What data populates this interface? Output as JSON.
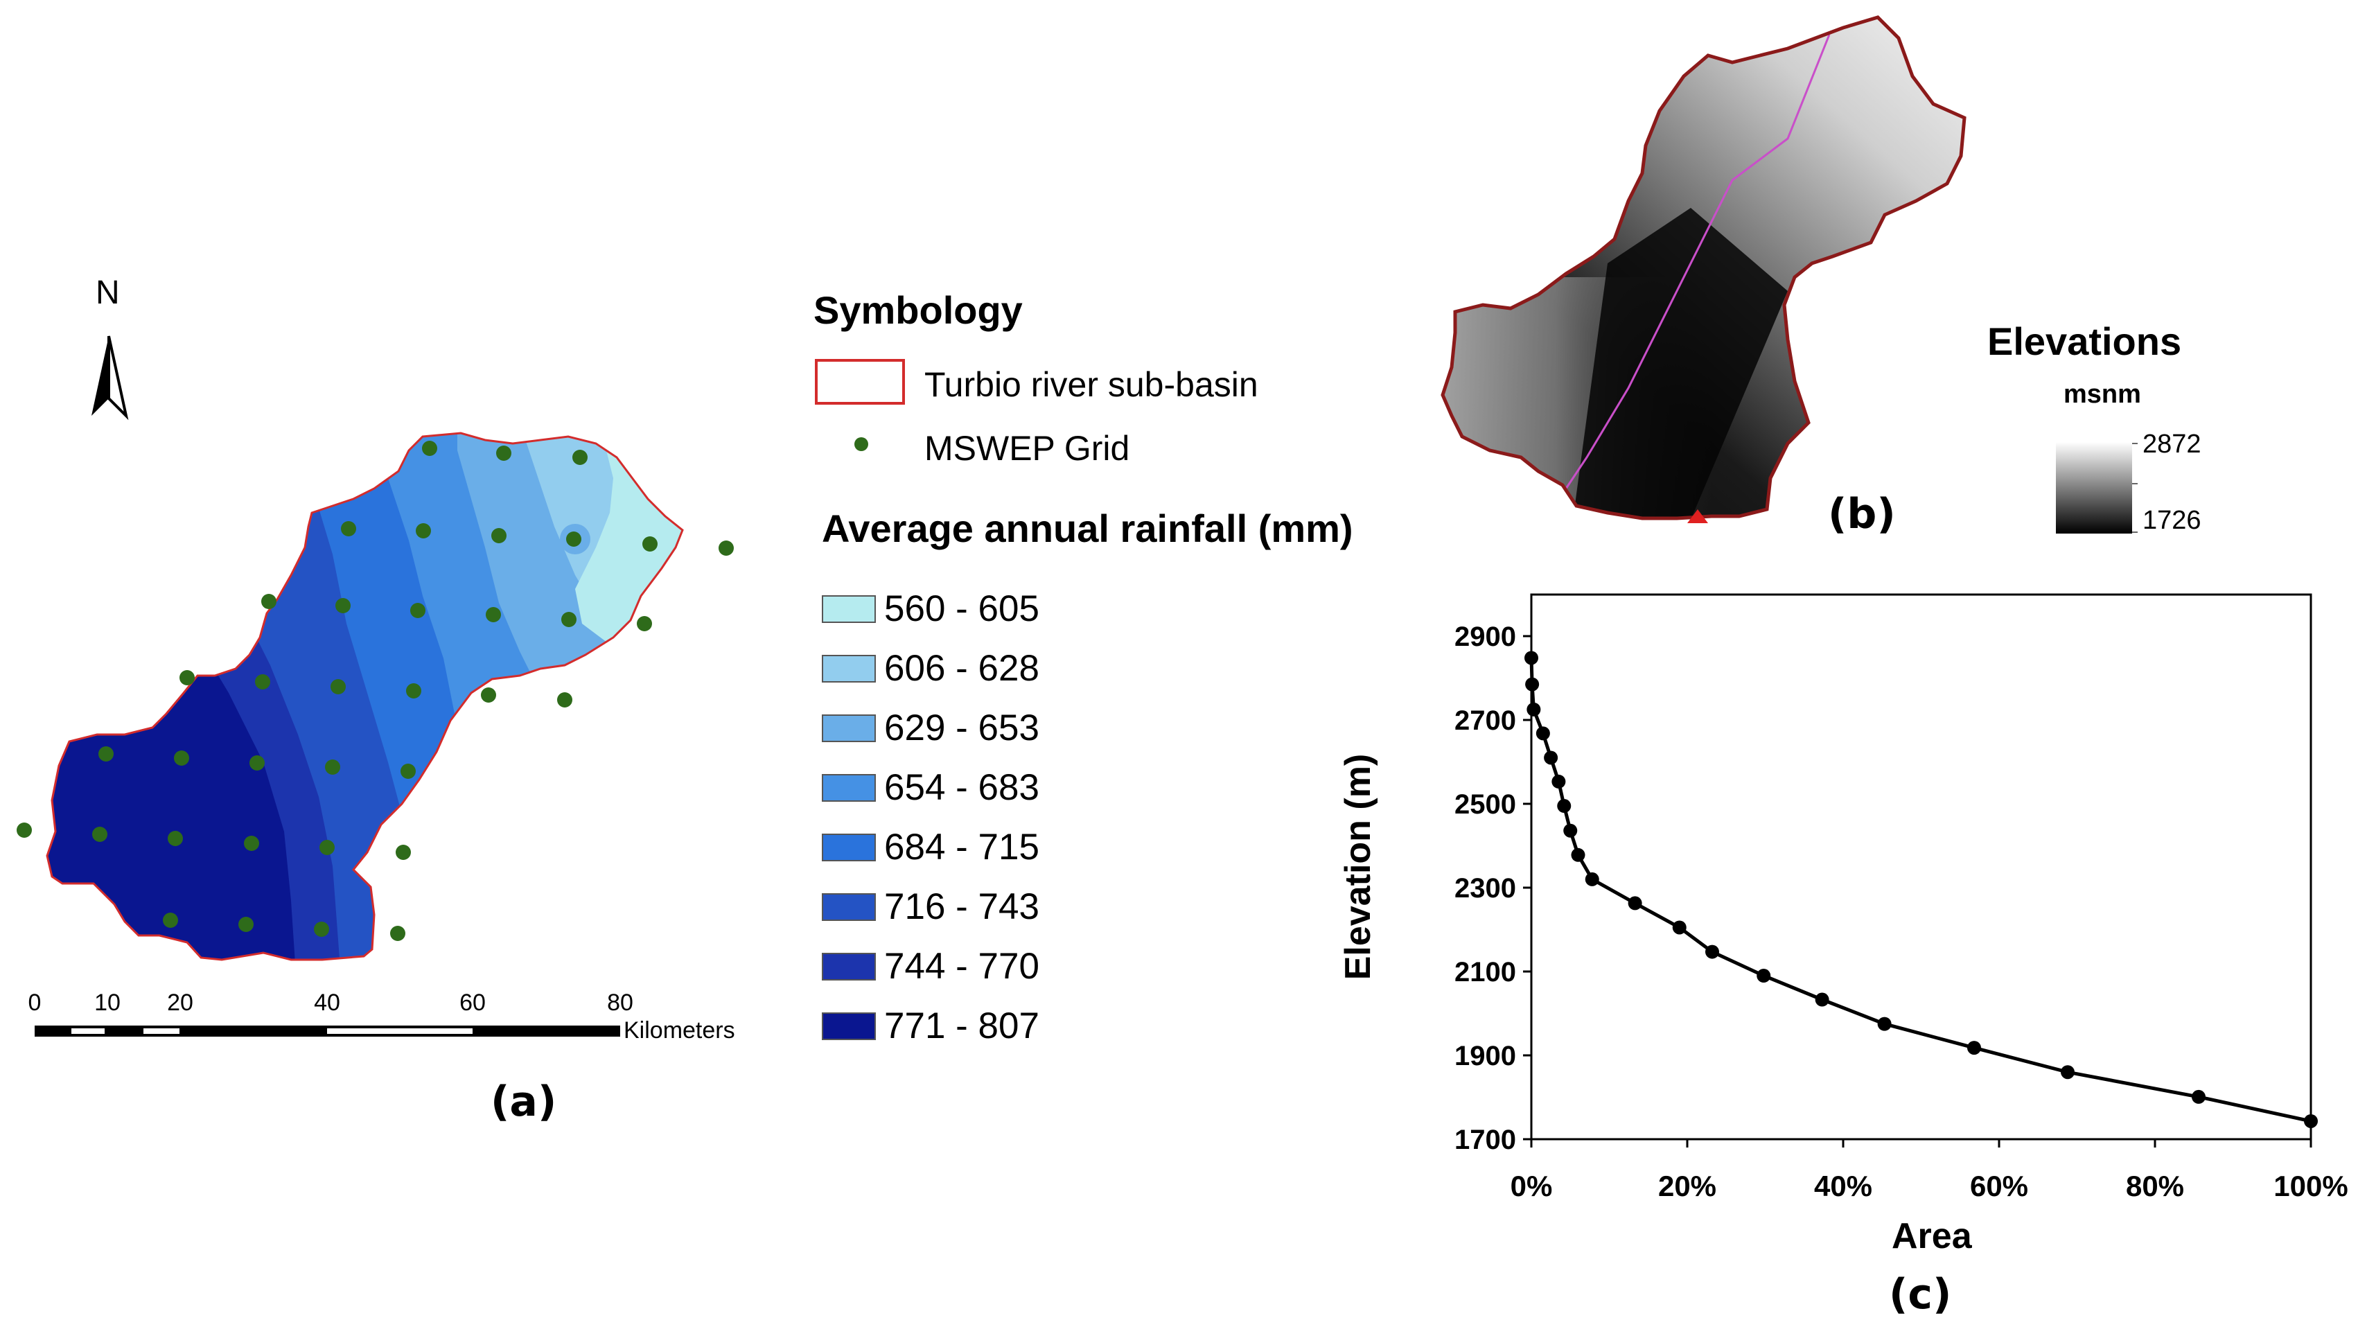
{
  "map_a": {
    "north_label": "N",
    "panel_label": "(a)",
    "scale_bar": {
      "ticks": [
        "0",
        "10",
        "20",
        "40",
        "60",
        "80"
      ],
      "unit": "Kilometers"
    }
  },
  "legend": {
    "symbology_title": "Symbology",
    "basin_label": "Turbio river sub-basin",
    "grid_label": "MSWEP Grid",
    "rainfall_title": "Average annual rainfall (mm)",
    "classes": [
      {
        "label": "560 - 605",
        "color": "#b5ebef"
      },
      {
        "label": "606 - 628",
        "color": "#92cdee"
      },
      {
        "label": "629 - 653",
        "color": "#6aaee8"
      },
      {
        "label": "654 - 683",
        "color": "#4591e4"
      },
      {
        "label": "684 - 715",
        "color": "#2a73dc"
      },
      {
        "label": "716 - 743",
        "color": "#2453c4"
      },
      {
        "label": "744 - 770",
        "color": "#1c34ad"
      },
      {
        "label": "771 - 807",
        "color": "#0a1690"
      }
    ],
    "colors": {
      "basin_outline": "#d32c2c",
      "grid_point": "#2e6b1a"
    }
  },
  "map_b": {
    "panel_label": "(b)",
    "elevations_title": "Elevations",
    "unit": "msnm",
    "max_label": "2872",
    "min_label": "1726"
  },
  "chart_c": {
    "panel_label": "(c)"
  },
  "chart_data": {
    "type": "line",
    "xlabel": "Area",
    "ylabel": "Elevation (m)",
    "xlim": [
      0,
      100
    ],
    "ylim": [
      1700,
      2950
    ],
    "x_ticks": [
      "0%",
      "20%",
      "40%",
      "60%",
      "80%",
      "100%"
    ],
    "y_ticks": [
      "1700",
      "1900",
      "2100",
      "2300",
      "2500",
      "2700",
      "2900"
    ],
    "series": [
      {
        "x": [
          0.0,
          0.1,
          0.3,
          1.5,
          2.5,
          3.5,
          4.2,
          5.0,
          6.0,
          7.8,
          13.3,
          19.0,
          23.2,
          29.8,
          37.3,
          45.3,
          56.8,
          68.8,
          85.6,
          100.0
        ],
        "y": [
          2848,
          2785,
          2725,
          2668,
          2610,
          2553,
          2495,
          2436,
          2378,
          2320,
          2263,
          2205,
          2147,
          2090,
          2033,
          1975,
          1918,
          1860,
          1801,
          1743
        ]
      }
    ]
  }
}
